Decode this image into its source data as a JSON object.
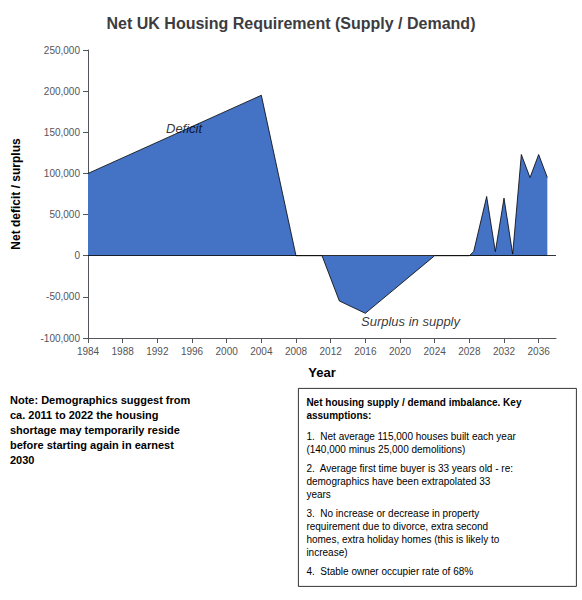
{
  "chart_data": {
    "type": "area",
    "title": "Net UK Housing Requirement (Supply / Demand)",
    "x_label": "Year",
    "y_label": "Net deficit / surplus",
    "x": [
      1984,
      2004,
      2008,
      2011,
      2013,
      2016,
      2024,
      2028,
      2028.5,
      2030,
      2031,
      2032,
      2033,
      2034,
      2035,
      2036,
      2037
    ],
    "values": [
      100000,
      195000,
      0,
      0,
      -55000,
      -70000,
      0,
      0,
      5000,
      72000,
      5000,
      70000,
      2000,
      123000,
      95000,
      123000,
      95000
    ],
    "color": "#4472C4",
    "xlim": [
      1984,
      2038
    ],
    "ylim": [
      -100000,
      250000
    ],
    "xticks": [
      1984,
      1988,
      1992,
      1996,
      2000,
      2004,
      2008,
      2012,
      2016,
      2020,
      2024,
      2028,
      2032,
      2036
    ],
    "yticks": [
      {
        "value": -100000,
        "label": "-100,000"
      },
      {
        "value": -50000,
        "label": "-50,000"
      },
      0,
      {
        "value": 50000,
        "label": "50,000"
      },
      {
        "value": 100000,
        "label": "100,000"
      },
      {
        "value": 150000,
        "label": "150,000"
      },
      {
        "value": 200000,
        "label": "200,000"
      },
      {
        "value": 250000,
        "label": "250,000"
      }
    ],
    "grid": false,
    "annotations": [
      {
        "text": "Deficit",
        "x": 1993,
        "y": 155000
      },
      {
        "text": "Surplus in supply",
        "x": 2015.5,
        "y": -80000
      }
    ],
    "note": "Note: Demographics suggest from\nca. 2011 to 2022 the housing\nshortage may temporarily reside\nbefore starting again in earnest\n2030",
    "text_box": {
      "title": "Net housing supply / demand imbalance. Key\nassumptions:",
      "points": [
        "1.  Net average 115,000 houses built each year\n(140,000 minus 25,000 demolitions)",
        "2.  Average first time buyer is 33 years old - re:\ndemographics have been extrapolated 33\nyears",
        "3.  No increase or decrease in property\nrequirement due to divorce, extra second\nhomes, extra holiday homes (this is likely to\nincrease)",
        "4.  Stable owner occupier rate of 68%"
      ]
    }
  }
}
